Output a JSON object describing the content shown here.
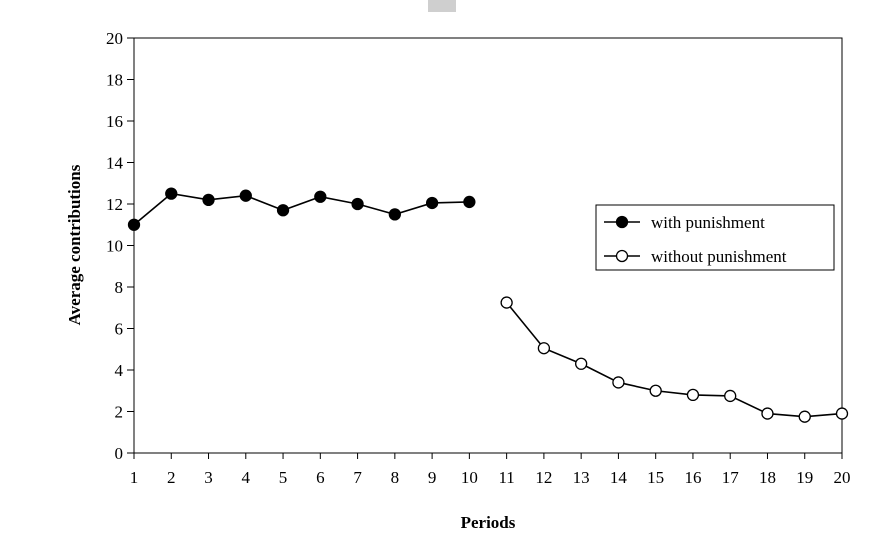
{
  "chart_data": {
    "type": "line",
    "title": "",
    "xlabel": "Periods",
    "ylabel": "Average contributions",
    "xlim": [
      1,
      20
    ],
    "ylim": [
      0,
      20
    ],
    "yticks": [
      0,
      2,
      4,
      6,
      8,
      10,
      12,
      14,
      16,
      18,
      20
    ],
    "xticks": [
      1,
      2,
      3,
      4,
      5,
      6,
      7,
      8,
      9,
      10,
      11,
      12,
      13,
      14,
      15,
      16,
      17,
      18,
      19,
      20
    ],
    "grid": false,
    "legend_position": "right",
    "series": [
      {
        "name": "with punishment",
        "marker": "filled-circle",
        "color": "#000000",
        "x": [
          1,
          2,
          3,
          4,
          5,
          6,
          7,
          8,
          9,
          10
        ],
        "values": [
          11.0,
          12.5,
          12.2,
          12.4,
          11.7,
          12.35,
          12.0,
          11.5,
          12.05,
          12.1
        ]
      },
      {
        "name": "without punishment",
        "marker": "open-circle",
        "color": "#000000",
        "x": [
          11,
          12,
          13,
          14,
          15,
          16,
          17,
          18,
          19,
          20
        ],
        "values": [
          7.25,
          5.05,
          4.3,
          3.4,
          3.0,
          2.8,
          2.75,
          1.9,
          1.75,
          1.9
        ]
      }
    ]
  }
}
